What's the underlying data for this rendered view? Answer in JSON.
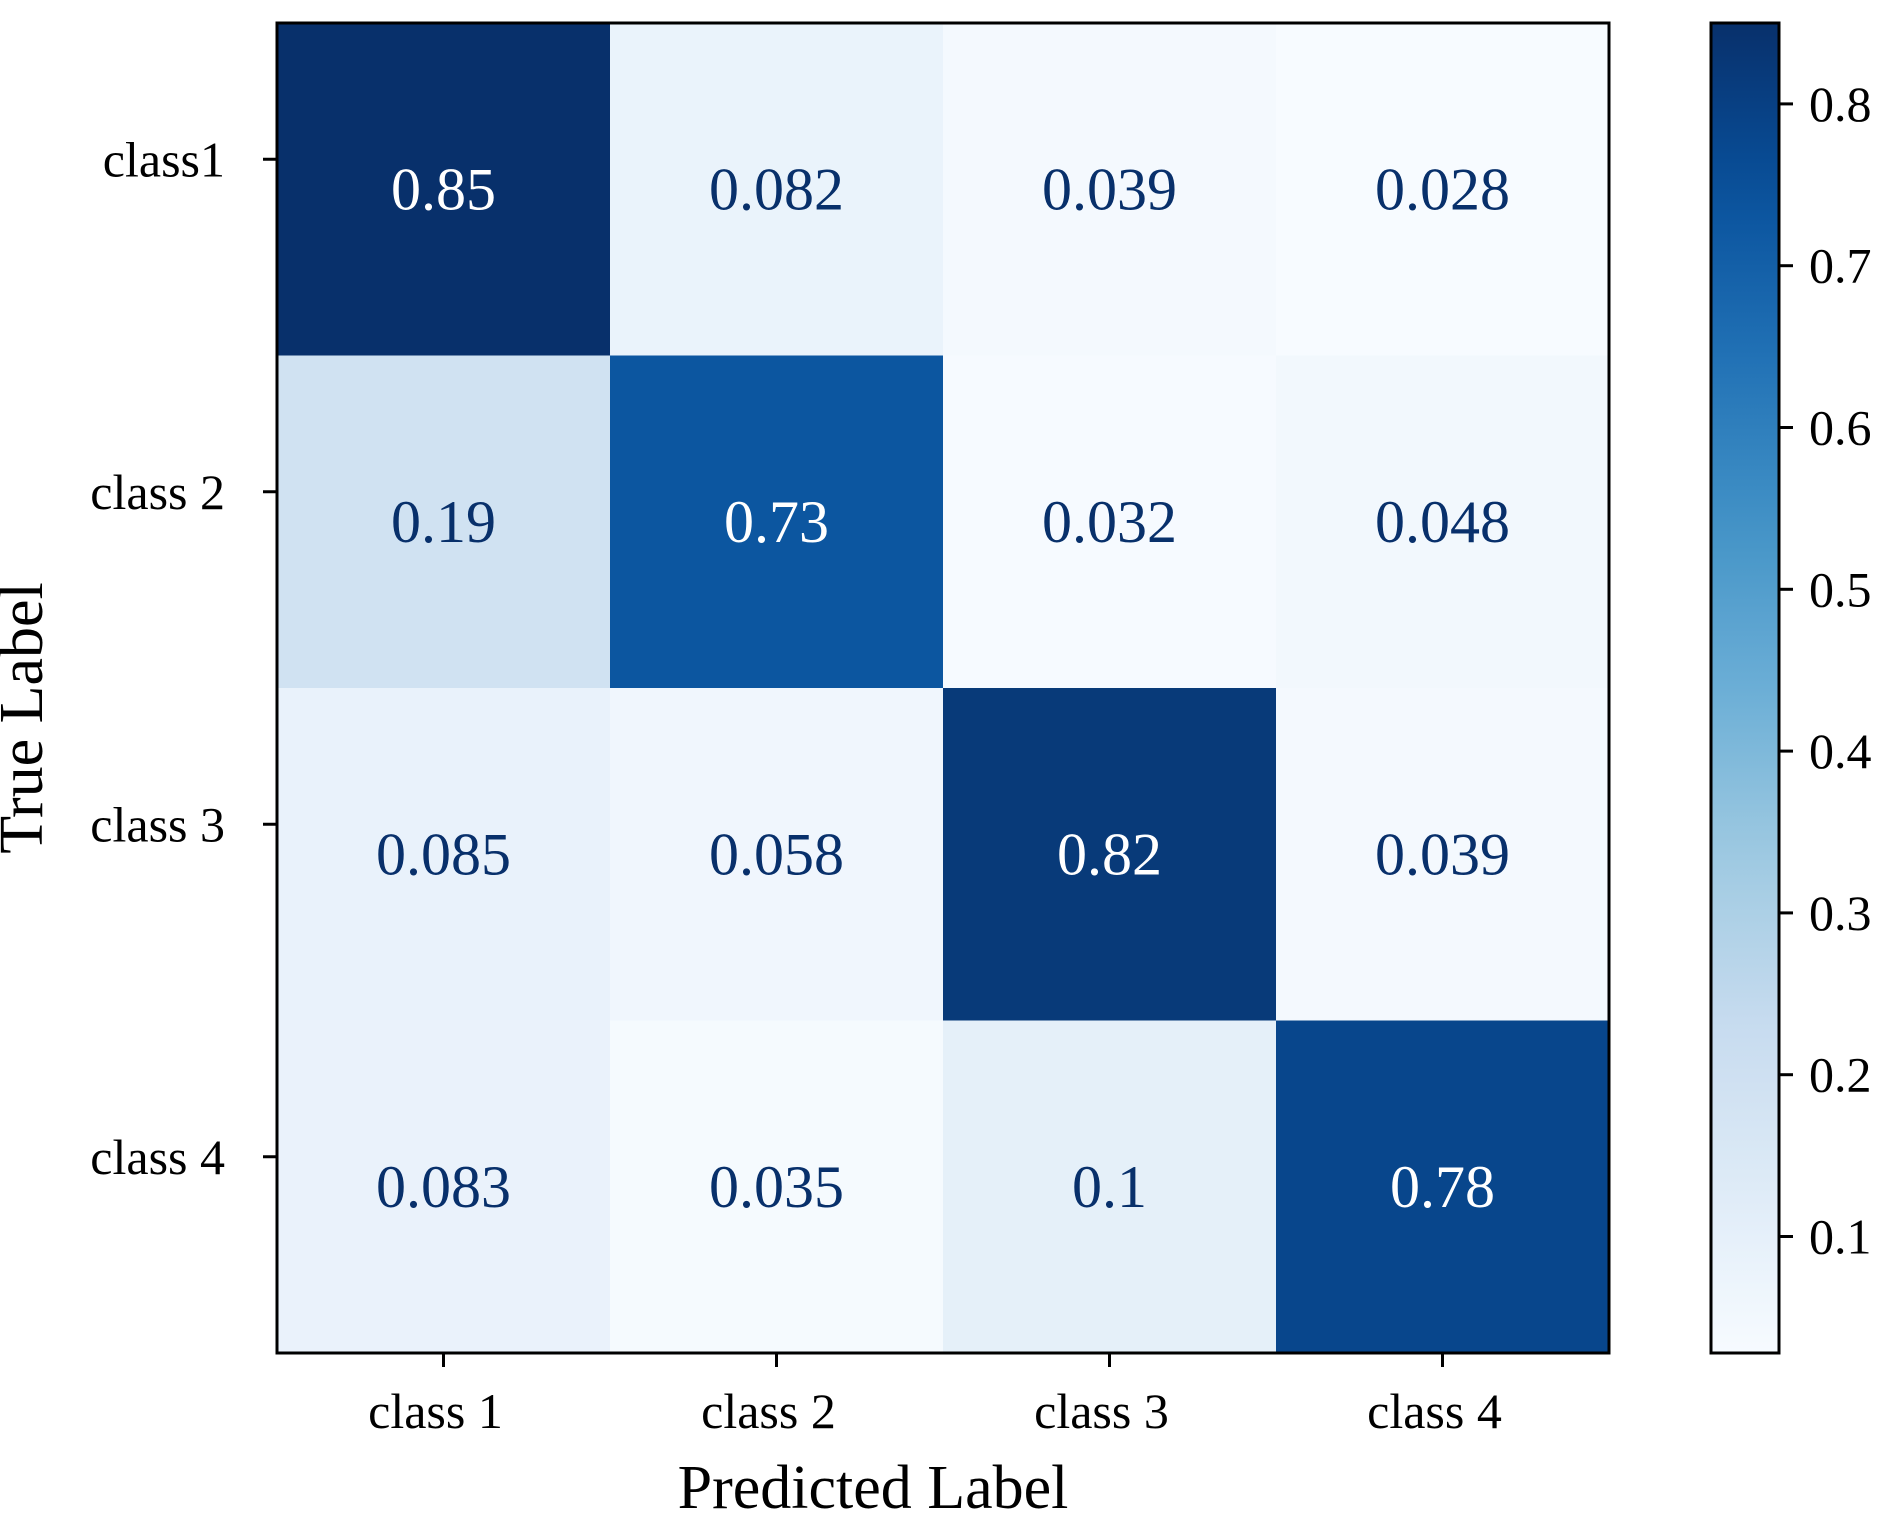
{
  "chart_data": {
    "type": "heatmap",
    "title": "",
    "xlabel": "Predicted Label",
    "ylabel": "True Label",
    "x_categories": [
      "class 1",
      "class 2",
      "class 3",
      "class 4"
    ],
    "y_categories": [
      "class1",
      "class 2",
      "class 3",
      "class 4"
    ],
    "value_labels": [
      [
        "0.85",
        "0.082",
        "0.039",
        "0.028"
      ],
      [
        "0.19",
        "0.73",
        "0.032",
        "0.048"
      ],
      [
        "0.085",
        "0.058",
        "0.82",
        "0.039"
      ],
      [
        "0.083",
        "0.035",
        "0.1",
        "0.78"
      ]
    ],
    "values": [
      [
        0.85,
        0.082,
        0.039,
        0.028
      ],
      [
        0.19,
        0.73,
        0.032,
        0.048
      ],
      [
        0.085,
        0.058,
        0.82,
        0.039
      ],
      [
        0.083,
        0.035,
        0.1,
        0.78
      ]
    ],
    "colormap": "Blues",
    "colorbar": {
      "range": [
        0.028,
        0.85
      ],
      "ticks": [
        0.1,
        0.2,
        0.3,
        0.4,
        0.5,
        0.6,
        0.7,
        0.8
      ],
      "tick_labels": [
        "0.1",
        "0.2",
        "0.3",
        "0.4",
        "0.5",
        "0.6",
        "0.7",
        "0.8"
      ]
    },
    "text_colors": {
      "dark": "#08306b",
      "light": "#ffffff"
    }
  }
}
